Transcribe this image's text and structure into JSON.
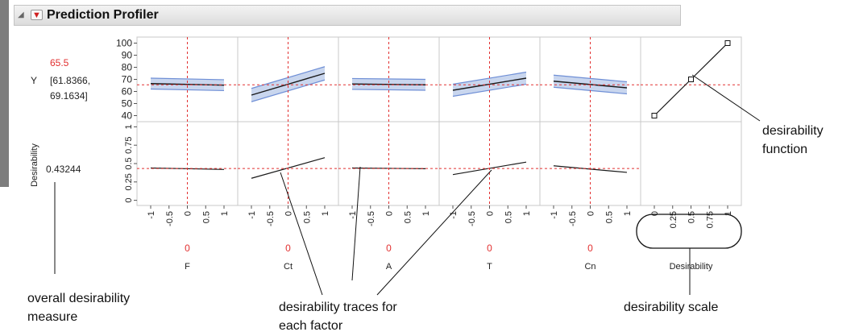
{
  "header": {
    "title": "Prediction Profiler",
    "collapse_icon": "collapse-triangle-icon",
    "menu_icon": "red-triangle-menu-icon"
  },
  "colors": {
    "accent_red": "#e23030",
    "confidence_band": "#b7c8e8",
    "band_edge": "#6f8fd6"
  },
  "response": {
    "name": "Y",
    "value": "65.5",
    "ci": [
      "[61.8366,",
      "69.1634]"
    ]
  },
  "desirability": {
    "label": "Desirability",
    "value": "0.43244"
  },
  "annotations": {
    "desirability_function": [
      "desirability",
      "function"
    ],
    "overall": [
      "overall desirability",
      "measure"
    ],
    "traces": [
      "desirability traces for",
      "each factor"
    ],
    "scale": "desirability scale"
  },
  "chart_data": {
    "type": "line",
    "factors": [
      {
        "name": "F",
        "current": "0",
        "y_start": 66.5,
        "y_end": 65.2,
        "ci": 4.5,
        "d_start": 0.44,
        "d_end": 0.42
      },
      {
        "name": "Ct",
        "current": "0",
        "y_start": 57.0,
        "y_end": 75.0,
        "ci": 5.5,
        "d_start": 0.3,
        "d_end": 0.58
      },
      {
        "name": "A",
        "current": "0",
        "y_start": 66.2,
        "y_end": 65.5,
        "ci": 4.5,
        "d_start": 0.44,
        "d_end": 0.43
      },
      {
        "name": "T",
        "current": "0",
        "y_start": 61.0,
        "y_end": 71.0,
        "ci": 5.0,
        "d_start": 0.35,
        "d_end": 0.52
      },
      {
        "name": "Cn",
        "current": "0",
        "y_start": 68.5,
        "y_end": 63.0,
        "ci": 5.0,
        "d_start": 0.47,
        "d_end": 0.38
      }
    ],
    "x_ticks": [
      "-1",
      "-0.5",
      "0",
      "0.5",
      "1"
    ],
    "y_ticks": [
      "40",
      "50",
      "60",
      "70",
      "80",
      "90",
      "100"
    ],
    "ylim": [
      35,
      105
    ],
    "desir_ticks": [
      "0",
      "0.25",
      "0.5",
      "0.75",
      "1"
    ],
    "desir_ylim": [
      -0.07,
      1.07
    ],
    "desirability_function": {
      "points": [
        [
          0,
          40
        ],
        [
          0.5,
          70
        ],
        [
          1,
          100
        ]
      ],
      "xlabel": "Desirability",
      "x_ticks": [
        "0",
        "0.25",
        "0.5",
        "0.75",
        "1"
      ]
    }
  }
}
